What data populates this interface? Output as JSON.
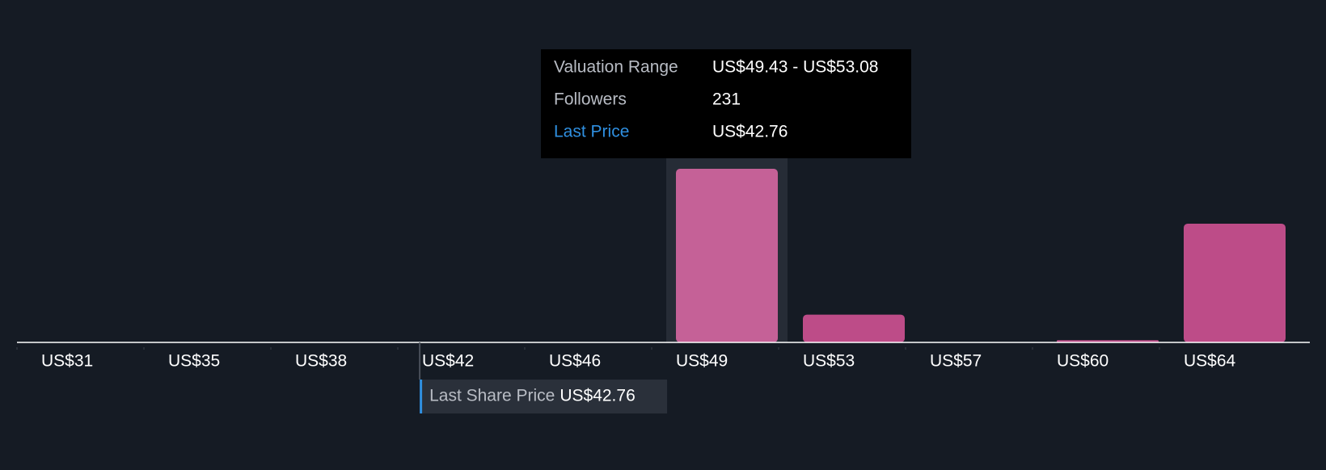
{
  "chart_data": {
    "type": "histogram",
    "bins": [
      31.18,
      34.83,
      38.48,
      42.13,
      45.78,
      49.43,
      53.08,
      56.73,
      60.38,
      64.03,
      67.68
    ],
    "values": [
      0,
      0,
      0,
      0,
      0,
      231,
      37,
      0,
      3,
      158
    ],
    "color": "#bd4c88",
    "highlight_color": "#c56197",
    "xlim": [
      31.18,
      67.68
    ],
    "xticks": [
      {
        "value": 31.18,
        "label": "US$31"
      },
      {
        "value": 34.83,
        "label": "US$35"
      },
      {
        "value": 38.48,
        "label": "US$38"
      },
      {
        "value": 42.13,
        "label": "US$42"
      },
      {
        "value": 45.78,
        "label": "US$46"
      },
      {
        "value": 49.43,
        "label": "US$49"
      },
      {
        "value": 53.08,
        "label": "US$53"
      },
      {
        "value": 56.73,
        "label": "US$57"
      },
      {
        "value": 60.38,
        "label": "US$60"
      },
      {
        "value": 64.03,
        "label": "US$64"
      }
    ],
    "last_price": {
      "value": 42.76,
      "label": "US$42.76"
    },
    "last_price_title": "Last Share Price",
    "highlight_bin": 5,
    "tooltip": {
      "range_label": "Valuation Range",
      "range": "US$49.43 - US$53.08",
      "followers_label": "Followers",
      "price_label": "Last Price"
    }
  }
}
